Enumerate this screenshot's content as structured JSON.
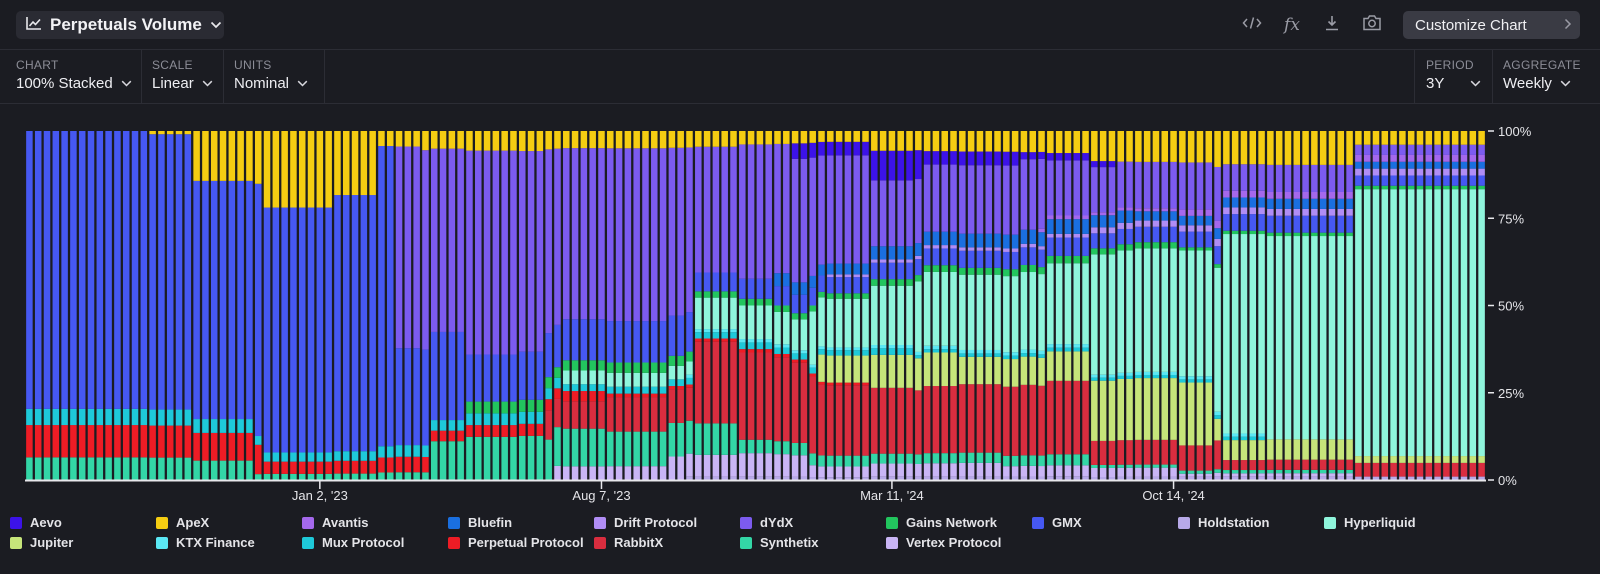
{
  "header": {
    "title": "Perpetuals Volume",
    "customize_label": "Customize Chart"
  },
  "controls": {
    "chart": {
      "label": "CHART",
      "value": "100% Stacked"
    },
    "scale": {
      "label": "SCALE",
      "value": "Linear"
    },
    "units": {
      "label": "UNITS",
      "value": "Nominal"
    },
    "period": {
      "label": "PERIOD",
      "value": "3Y"
    },
    "aggregate": {
      "label": "AGGREGATE",
      "value": "Weekly"
    }
  },
  "chart_data": {
    "type": "bar",
    "stacked": "100%",
    "aggregation": "weekly",
    "x_ticks": [
      "Jan 2, '23",
      "Aug 7, '23",
      "Mar 11, '24",
      "Oct 14, '24"
    ],
    "y_ticks": [
      "0%",
      "25%",
      "50%",
      "75%",
      "100%"
    ],
    "ylim": [
      0,
      100
    ],
    "grid": false,
    "legend_position": "bottom",
    "n_bars": 166,
    "tick_bar_index": [
      33,
      65,
      98,
      130
    ],
    "series_order_bottom_to_top": [
      "Holdstation",
      "Vertex Protocol",
      "Synthetix",
      "RabbitX",
      "Perpetual Protocol",
      "Jupiter",
      "Mux Protocol",
      "KTX Finance",
      "Hyperliquid",
      "Gains Network",
      "GMX",
      "Drift Protocol",
      "Bluefin",
      "Avantis",
      "dYdX",
      "Aevo",
      "ApeX"
    ],
    "series": [
      {
        "name": "Aevo",
        "color": "#3c12e8",
        "weeks": [
          [
            0,
            86,
            0
          ],
          [
            87,
            95,
            5
          ],
          [
            96,
            101,
            9
          ],
          [
            102,
            112,
            4
          ],
          [
            113,
            123,
            2
          ],
          [
            124,
            165,
            0
          ]
        ]
      },
      {
        "name": "ApeX",
        "color": "#f5cd12",
        "weeks": [
          [
            0,
            13,
            0
          ],
          [
            14,
            18,
            1
          ],
          [
            19,
            26,
            18
          ],
          [
            27,
            34,
            25
          ],
          [
            35,
            39,
            20
          ],
          [
            40,
            44,
            4
          ],
          [
            45,
            80,
            5
          ],
          [
            81,
            95,
            4
          ],
          [
            96,
            120,
            6
          ],
          [
            121,
            150,
            10
          ],
          [
            151,
            165,
            4
          ]
        ]
      },
      {
        "name": "Avantis",
        "color": "#a468ec",
        "weeks": [
          [
            0,
            114,
            0
          ],
          [
            115,
            130,
            1
          ],
          [
            131,
            150,
            2
          ],
          [
            151,
            165,
            2
          ]
        ]
      },
      {
        "name": "Bluefin",
        "color": "#1a6fe0",
        "weeks": [
          [
            0,
            84,
            0
          ],
          [
            85,
            100,
            4
          ],
          [
            101,
            125,
            4
          ],
          [
            126,
            150,
            3
          ],
          [
            151,
            165,
            2
          ]
        ]
      },
      {
        "name": "Drift Protocol",
        "color": "#b08df5",
        "weeks": [
          [
            0,
            90,
            0
          ],
          [
            91,
            120,
            1
          ],
          [
            121,
            150,
            2
          ],
          [
            151,
            165,
            2
          ]
        ]
      },
      {
        "name": "dYdX",
        "color": "#7c5bef",
        "weeks": [
          [
            0,
            41,
            0
          ],
          [
            42,
            55,
            52
          ],
          [
            56,
            75,
            50
          ],
          [
            76,
            95,
            40
          ],
          [
            96,
            115,
            20
          ],
          [
            116,
            135,
            15
          ],
          [
            136,
            150,
            8
          ],
          [
            151,
            165,
            3
          ]
        ]
      },
      {
        "name": "Gains Network",
        "color": "#22c55e",
        "weeks": [
          [
            0,
            49,
            0
          ],
          [
            50,
            75,
            3
          ],
          [
            76,
            110,
            2
          ],
          [
            111,
            130,
            2
          ],
          [
            131,
            145,
            1
          ],
          [
            146,
            165,
            1
          ]
        ]
      },
      {
        "name": "GMX",
        "color": "#4658f2",
        "weeks": [
          [
            0,
            26,
            86
          ],
          [
            27,
            41,
            80
          ],
          [
            42,
            49,
            25
          ],
          [
            50,
            75,
            12
          ],
          [
            76,
            95,
            6
          ],
          [
            96,
            125,
            5
          ],
          [
            126,
            150,
            5
          ],
          [
            151,
            165,
            3
          ]
        ]
      },
      {
        "name": "Holdstation",
        "color": "#b7a9e8",
        "weeks": [
          [
            0,
            74,
            0
          ],
          [
            75,
            110,
            1
          ],
          [
            111,
            140,
            1
          ],
          [
            141,
            165,
            1
          ]
        ]
      },
      {
        "name": "Hyperliquid",
        "color": "#8ff5dc",
        "weeks": [
          [
            0,
            60,
            0
          ],
          [
            61,
            75,
            4
          ],
          [
            76,
            88,
            10
          ],
          [
            89,
            100,
            18
          ],
          [
            101,
            120,
            22
          ],
          [
            121,
            135,
            40
          ],
          [
            136,
            150,
            60
          ],
          [
            151,
            165,
            78
          ]
        ]
      },
      {
        "name": "Jupiter",
        "color": "#c6e57a",
        "weeks": [
          [
            0,
            89,
            0
          ],
          [
            90,
            105,
            10
          ],
          [
            106,
            120,
            8
          ],
          [
            121,
            134,
            20
          ],
          [
            135,
            150,
            6
          ],
          [
            151,
            165,
            2
          ]
        ]
      },
      {
        "name": "KTX Finance",
        "color": "#5be8f4",
        "weeks": [
          [
            0,
            74,
            0
          ],
          [
            75,
            110,
            1
          ],
          [
            111,
            140,
            1
          ],
          [
            141,
            165,
            0
          ]
        ]
      },
      {
        "name": "Mux Protocol",
        "color": "#1ec9d9",
        "weeks": [
          [
            0,
            25,
            5
          ],
          [
            26,
            60,
            3
          ],
          [
            61,
            100,
            2
          ],
          [
            101,
            140,
            1
          ],
          [
            141,
            165,
            0
          ]
        ]
      },
      {
        "name": "Perpetual Protocol",
        "color": "#ee1c25",
        "weeks": [
          [
            0,
            26,
            10
          ],
          [
            27,
            45,
            4
          ],
          [
            46,
            65,
            3
          ],
          [
            66,
            95,
            1
          ],
          [
            96,
            165,
            0
          ]
        ]
      },
      {
        "name": "RabbitX",
        "color": "#d92d3f",
        "weeks": [
          [
            0,
            58,
            0
          ],
          [
            59,
            65,
            8
          ],
          [
            66,
            75,
            10
          ],
          [
            76,
            95,
            26
          ],
          [
            96,
            120,
            20
          ],
          [
            121,
            135,
            8
          ],
          [
            136,
            150,
            3
          ],
          [
            151,
            165,
            4
          ]
        ]
      },
      {
        "name": "Synthetix",
        "color": "#33d6a6",
        "weeks": [
          [
            0,
            25,
            7
          ],
          [
            26,
            45,
            2
          ],
          [
            46,
            65,
            11
          ],
          [
            66,
            80,
            10
          ],
          [
            81,
            95,
            4
          ],
          [
            96,
            120,
            3
          ],
          [
            121,
            150,
            1
          ],
          [
            151,
            165,
            0
          ]
        ]
      },
      {
        "name": "Vertex Protocol",
        "color": "#c9b5f5",
        "weeks": [
          [
            0,
            59,
            0
          ],
          [
            60,
            72,
            4
          ],
          [
            73,
            88,
            7
          ],
          [
            89,
            110,
            4
          ],
          [
            111,
            130,
            3
          ],
          [
            131,
            150,
            1
          ],
          [
            151,
            165,
            0
          ]
        ]
      }
    ]
  },
  "legend": [
    {
      "name": "Aevo",
      "color": "#3c12e8"
    },
    {
      "name": "ApeX",
      "color": "#f5cd12"
    },
    {
      "name": "Avantis",
      "color": "#a468ec"
    },
    {
      "name": "Bluefin",
      "color": "#1a6fe0"
    },
    {
      "name": "Drift Protocol",
      "color": "#b08df5"
    },
    {
      "name": "dYdX",
      "color": "#7c5bef"
    },
    {
      "name": "Gains Network",
      "color": "#22c55e"
    },
    {
      "name": "GMX",
      "color": "#4658f2"
    },
    {
      "name": "Holdstation",
      "color": "#b7a9e8"
    },
    {
      "name": "Hyperliquid",
      "color": "#8ff5dc"
    },
    {
      "name": "Jupiter",
      "color": "#c6e57a"
    },
    {
      "name": "KTX Finance",
      "color": "#5be8f4"
    },
    {
      "name": "Mux Protocol",
      "color": "#1ec9d9"
    },
    {
      "name": "Perpetual Protocol",
      "color": "#ee1c25"
    },
    {
      "name": "RabbitX",
      "color": "#d92d3f"
    },
    {
      "name": "Synthetix",
      "color": "#33d6a6"
    },
    {
      "name": "Vertex Protocol",
      "color": "#c9b5f5"
    }
  ]
}
